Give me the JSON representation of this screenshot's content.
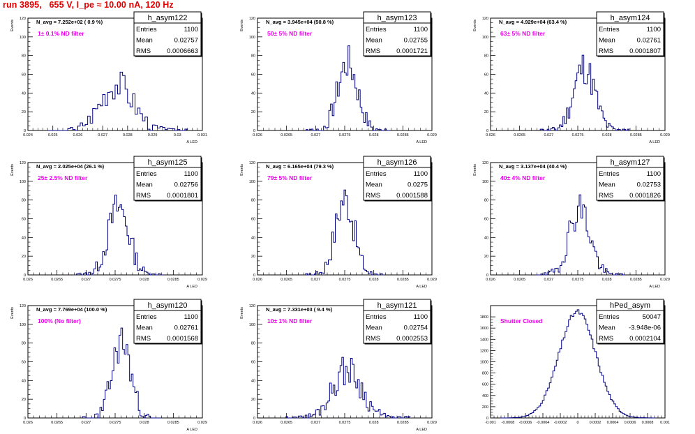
{
  "title": "run 3895,   655 V, I_pe ≈ 10.00 nA, 120 Hz",
  "stats_labels": {
    "entries": "Entries",
    "mean": "Mean",
    "rms": "RMS"
  },
  "chart_data": [
    {
      "type": "histogram",
      "name": "h_asym122",
      "navg_text": "N_avg = 7.252e+02 ( 0.9 %)",
      "filter_text": "1± 0.1% ND filter",
      "entries": "1100",
      "mean": "0.02757",
      "rms": "0.0006663",
      "ylabel": "Events",
      "xlabel": "A_LED",
      "xlim": [
        0.024,
        0.031
      ],
      "ylim": [
        0,
        120
      ],
      "y_ticks": [
        0,
        20,
        40,
        60,
        80,
        100,
        120
      ],
      "x_ticks": [
        0.024,
        0.025,
        0.026,
        0.027,
        0.028,
        0.029,
        0.03,
        0.031
      ],
      "x_tick_labels": [
        "0.024",
        "0.025",
        "0.026",
        "0.027",
        "0.028",
        "0.029",
        "0.03",
        "0.031"
      ],
      "dist": {
        "mu": 0.02757,
        "sigma": 0.00066,
        "peak": 50,
        "seed": 3,
        "step": 0.0001
      }
    },
    {
      "type": "histogram",
      "name": "h_asym123",
      "navg_text": "N_avg = 3.945e+04 (50.8 %)",
      "filter_text": "50± 5% ND filter",
      "entries": "1100",
      "mean": "0.02755",
      "rms": "0.0001721",
      "ylabel": "Events",
      "xlabel": "A_LED",
      "xlim": [
        0.026,
        0.029
      ],
      "ylim": [
        0,
        120
      ],
      "y_ticks": [
        0,
        20,
        40,
        60,
        80,
        100,
        120
      ],
      "x_ticks": [
        0.026,
        0.0265,
        0.027,
        0.0275,
        0.028,
        0.0285,
        0.029
      ],
      "x_tick_labels": [
        "0.026",
        "0.0265",
        "0.027",
        "0.0275",
        "0.028",
        "0.0285",
        "0.029"
      ],
      "dist": {
        "mu": 0.02755,
        "sigma": 0.00017,
        "peak": 72,
        "seed": 7,
        "step": 3e-05
      }
    },
    {
      "type": "histogram",
      "name": "h_asym124",
      "navg_text": "N_avg = 4.929e+04 (63.4 %)",
      "filter_text": "63± 5% ND filter",
      "entries": "1100",
      "mean": "0.02761",
      "rms": "0.0001807",
      "ylabel": "Events",
      "xlabel": "A_LED",
      "xlim": [
        0.026,
        0.029
      ],
      "ylim": [
        0,
        120
      ],
      "y_ticks": [
        0,
        20,
        40,
        60,
        80,
        100,
        120
      ],
      "x_ticks": [
        0.026,
        0.0265,
        0.027,
        0.0275,
        0.028,
        0.0285,
        0.029
      ],
      "x_tick_labels": [
        "0.026",
        "0.0265",
        "0.027",
        "0.0275",
        "0.028",
        "0.0285",
        "0.029"
      ],
      "dist": {
        "mu": 0.02761,
        "sigma": 0.00018,
        "peak": 68,
        "seed": 11,
        "step": 3e-05
      }
    },
    {
      "type": "histogram",
      "name": "h_asym125",
      "navg_text": "N_avg = 2.025e+04 (26.1 %)",
      "filter_text": "25± 2.5% ND filter",
      "entries": "1100",
      "mean": "0.02756",
      "rms": "0.0001801",
      "ylabel": "Events",
      "xlabel": "A_LED",
      "xlim": [
        0.026,
        0.029
      ],
      "ylim": [
        0,
        120
      ],
      "y_ticks": [
        0,
        20,
        40,
        60,
        80,
        100,
        120
      ],
      "x_ticks": [
        0.026,
        0.0265,
        0.027,
        0.0275,
        0.028,
        0.0285,
        0.029
      ],
      "x_tick_labels": [
        "0.026",
        "0.0265",
        "0.027",
        "0.0275",
        "0.028",
        "0.0285",
        "0.029"
      ],
      "dist": {
        "mu": 0.02756,
        "sigma": 0.00018,
        "peak": 72,
        "seed": 13,
        "step": 3e-05
      }
    },
    {
      "type": "histogram",
      "name": "h_asym126",
      "navg_text": "N_avg = 6.165e+04 (79.3 %)",
      "filter_text": "79± 5% ND filter",
      "entries": "1100",
      "mean": "0.0275",
      "rms": "0.0001588",
      "ylabel": "Events",
      "xlabel": "A_LED",
      "xlim": [
        0.026,
        0.029
      ],
      "ylim": [
        0,
        120
      ],
      "y_ticks": [
        0,
        20,
        40,
        60,
        80,
        100,
        120
      ],
      "x_ticks": [
        0.026,
        0.0265,
        0.027,
        0.0275,
        0.028,
        0.0285,
        0.029
      ],
      "x_tick_labels": [
        "0.026",
        "0.0265",
        "0.027",
        "0.0275",
        "0.028",
        "0.0285",
        "0.029"
      ],
      "dist": {
        "mu": 0.0275,
        "sigma": 0.00016,
        "peak": 82,
        "seed": 17,
        "step": 3e-05
      }
    },
    {
      "type": "histogram",
      "name": "h_asym127",
      "navg_text": "N_avg = 3.137e+04 (40.4 %)",
      "filter_text": "40± 4% ND filter",
      "entries": "1100",
      "mean": "0.02753",
      "rms": "0.0001826",
      "ylabel": "Events",
      "xlabel": "A_LED",
      "xlim": [
        0.026,
        0.029
      ],
      "ylim": [
        0,
        120
      ],
      "y_ticks": [
        0,
        20,
        40,
        60,
        80,
        100,
        120
      ],
      "x_ticks": [
        0.026,
        0.0265,
        0.027,
        0.0275,
        0.028,
        0.0285,
        0.029
      ],
      "x_tick_labels": [
        "0.026",
        "0.0265",
        "0.027",
        "0.0275",
        "0.028",
        "0.0285",
        "0.029"
      ],
      "dist": {
        "mu": 0.02753,
        "sigma": 0.00018,
        "peak": 72,
        "seed": 19,
        "step": 3e-05
      }
    },
    {
      "type": "histogram",
      "name": "h_asym120",
      "navg_text": "N_avg = 7.769e+04 (100.0 %)",
      "filter_text": "100% (No filter)",
      "entries": "1100",
      "mean": "0.02761",
      "rms": "0.0001568",
      "ylabel": "Events",
      "xlabel": "A_LED",
      "xlim": [
        0.026,
        0.029
      ],
      "ylim": [
        0,
        120
      ],
      "y_ticks": [
        0,
        20,
        40,
        60,
        80,
        100,
        120
      ],
      "x_ticks": [
        0.026,
        0.0265,
        0.027,
        0.0275,
        0.028,
        0.0285,
        0.029
      ],
      "x_tick_labels": [
        "0.026",
        "0.0265",
        "0.027",
        "0.0275",
        "0.028",
        "0.0285",
        "0.029"
      ],
      "dist": {
        "mu": 0.02761,
        "sigma": 0.00016,
        "peak": 82,
        "seed": 23,
        "step": 3e-05
      }
    },
    {
      "type": "histogram",
      "name": "h_asym121",
      "navg_text": "N_avg = 7.331e+03 ( 9.4 %)",
      "filter_text": "10± 1% ND filter",
      "entries": "1100",
      "mean": "0.02754",
      "rms": "0.0002553",
      "ylabel": "Events",
      "xlabel": "A_LED",
      "xlim": [
        0.026,
        0.029
      ],
      "ylim": [
        0,
        120
      ],
      "y_ticks": [
        0,
        20,
        40,
        60,
        80,
        100,
        120
      ],
      "x_ticks": [
        0.026,
        0.0265,
        0.027,
        0.0275,
        0.028,
        0.0285,
        0.029
      ],
      "x_tick_labels": [
        "0.026",
        "0.0265",
        "0.027",
        "0.0275",
        "0.028",
        "0.0285",
        "0.029"
      ],
      "dist": {
        "mu": 0.02754,
        "sigma": 0.00025,
        "peak": 52,
        "seed": 29,
        "step": 3e-05
      }
    },
    {
      "type": "histogram",
      "name": "hPed_asym",
      "navg_text": "",
      "filter_text": "Shutter Closed",
      "entries": "50047",
      "mean": "-3.948e-06",
      "rms": "0.0002104",
      "ylabel": "",
      "xlabel": "",
      "xlim": [
        -0.001,
        0.001
      ],
      "ylim": [
        0,
        2000
      ],
      "y_ticks": [
        0,
        200,
        400,
        600,
        800,
        1000,
        1200,
        1400,
        1600,
        1800
      ],
      "x_ticks": [
        -0.001,
        -0.0008,
        -0.0006,
        -0.0004,
        -0.0002,
        0,
        0.0002,
        0.0004,
        0.0006,
        0.0008,
        0.001
      ],
      "x_tick_labels": [
        "-0.001",
        "-0.0008",
        "-0.0006",
        "-0.0004",
        "-0.0002",
        "0",
        "0.0002",
        "0.0004",
        "0.0006",
        "0.0008",
        "0.001"
      ],
      "dist": {
        "mu": -4e-06,
        "sigma": 0.00021,
        "peak": 1890,
        "seed": 31,
        "step": 2e-05
      }
    }
  ]
}
